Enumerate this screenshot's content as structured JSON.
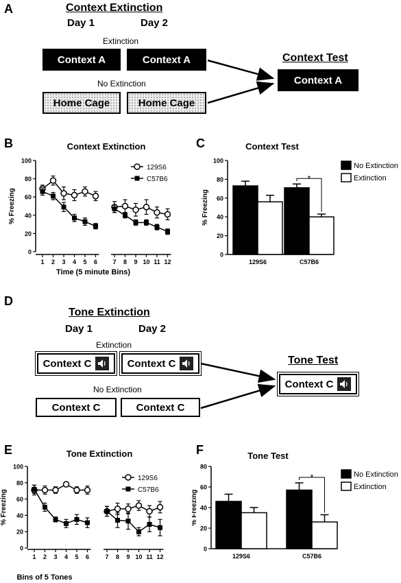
{
  "panels": {
    "a": {
      "letter": "A",
      "title": "Context Extinction",
      "day1": "Day 1",
      "day2": "Day 2",
      "extinction_label": "Extinction",
      "no_extinction_label": "No Extinction",
      "box_ext_1": "Context A",
      "box_ext_2": "Context A",
      "box_noext_1": "Home Cage",
      "box_noext_2": "Home Cage",
      "test_title": "Context Test",
      "test_box": "Context A"
    },
    "d": {
      "letter": "D",
      "title": "Tone Extinction",
      "day1": "Day 1",
      "day2": "Day 2",
      "extinction_label": "Extinction",
      "no_extinction_label": "No Extinction",
      "box_ext_1": "Context C",
      "box_ext_2": "Context C",
      "box_noext_1": "Context C",
      "box_noext_2": "Context C",
      "test_title": "Tone Test",
      "test_box": "Context C",
      "speaker_icon": "speaker-icon"
    },
    "b": {
      "letter": "B"
    },
    "c": {
      "letter": "C"
    },
    "e": {
      "letter": "E"
    },
    "f": {
      "letter": "F"
    }
  },
  "chart_data": [
    {
      "id": "B",
      "type": "line",
      "title": "Context Extinction",
      "xlabel": "Time (5 minute Bins)",
      "ylabel": "% Freezing",
      "ylim": [
        0,
        100
      ],
      "yticks": [
        0,
        20,
        40,
        60,
        80,
        100
      ],
      "x": [
        1,
        2,
        3,
        4,
        5,
        6,
        7,
        8,
        9,
        10,
        11,
        12
      ],
      "break_after": 6,
      "legend_position": "top-right",
      "series": [
        {
          "name": "129S6",
          "marker": "open-circle",
          "values": [
            69,
            78,
            64,
            62,
            66,
            61,
            49,
            50,
            46,
            49,
            43,
            41
          ],
          "errors": [
            4,
            5,
            7,
            6,
            5,
            5,
            6,
            7,
            7,
            8,
            6,
            6
          ]
        },
        {
          "name": "C57B6",
          "marker": "filled-square",
          "values": [
            66,
            61,
            49,
            37,
            33,
            28,
            47,
            40,
            32,
            32,
            27,
            22
          ],
          "errors": [
            4,
            4,
            5,
            4,
            4,
            3,
            4,
            3,
            3,
            3,
            3,
            3
          ]
        }
      ]
    },
    {
      "id": "C",
      "type": "bar",
      "title": "Context Test",
      "ylabel": "% Freezing",
      "ylim": [
        0,
        100
      ],
      "yticks": [
        0,
        20,
        40,
        60,
        80,
        100
      ],
      "categories": [
        "129S6",
        "C57B6"
      ],
      "legend_position": "top-right",
      "series": [
        {
          "name": "No Extinction",
          "color": "#000000",
          "values": [
            73,
            71
          ],
          "errors": [
            5,
            4
          ]
        },
        {
          "name": "Extinction",
          "color": "#ffffff",
          "values": [
            56,
            40
          ],
          "errors": [
            7,
            3
          ]
        }
      ],
      "significance": [
        {
          "category": "C57B6",
          "label": "*"
        }
      ]
    },
    {
      "id": "E",
      "type": "line",
      "title": "Tone Extinction",
      "xlabel": "Bins of 5 Tones",
      "ylabel": "% Freezing",
      "ylim": [
        0,
        100
      ],
      "yticks": [
        0,
        20,
        40,
        60,
        80,
        100
      ],
      "x": [
        1,
        2,
        3,
        4,
        5,
        6,
        7,
        8,
        9,
        10,
        11,
        12
      ],
      "break_after": 6,
      "legend_position": "top-right",
      "series": [
        {
          "name": "129S6",
          "marker": "open-circle",
          "values": [
            71,
            71,
            71,
            78,
            71,
            71,
            45,
            48,
            48,
            52,
            45,
            50
          ],
          "errors": [
            6,
            5,
            4,
            3,
            4,
            5,
            6,
            7,
            6,
            6,
            7,
            7
          ]
        },
        {
          "name": "C57B6",
          "marker": "filled-square",
          "values": [
            72,
            50,
            35,
            30,
            35,
            31,
            45,
            34,
            33,
            20,
            29,
            25
          ],
          "errors": [
            5,
            5,
            3,
            5,
            6,
            6,
            6,
            9,
            10,
            5,
            9,
            10
          ]
        }
      ]
    },
    {
      "id": "F",
      "type": "bar",
      "title": "Tone Test",
      "ylabel": "% Freezing",
      "ylim": [
        0,
        80
      ],
      "yticks": [
        0,
        20,
        40,
        60,
        80
      ],
      "categories": [
        "129S6",
        "C57B6"
      ],
      "legend_position": "top-right",
      "series": [
        {
          "name": "No Extinction",
          "color": "#000000",
          "values": [
            46,
            57
          ],
          "errors": [
            7,
            7
          ]
        },
        {
          "name": "Extinction",
          "color": "#ffffff",
          "values": [
            35,
            26
          ],
          "errors": [
            5,
            7
          ]
        }
      ],
      "significance": [
        {
          "category": "C57B6",
          "label": "*"
        }
      ]
    }
  ]
}
